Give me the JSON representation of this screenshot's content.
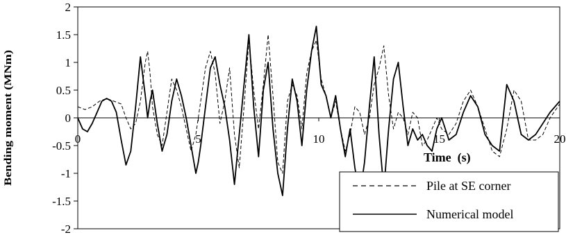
{
  "chart_data": {
    "type": "line",
    "title": "",
    "xlabel": "Time  (s)",
    "ylabel": "Bending moment (MNm)",
    "xlim": [
      0,
      20
    ],
    "ylim": [
      -2,
      2
    ],
    "x_ticks": [
      "0",
      "5",
      "10",
      "15",
      "20"
    ],
    "y_ticks": [
      "-2",
      "-1.5",
      "-1",
      "-0.5",
      "0",
      "0.5",
      "1",
      "1.5",
      "2"
    ],
    "grid": false,
    "legend_position": "bottom-right",
    "series": [
      {
        "name": "Pile at SE corner",
        "style": "dashed",
        "color": "#000000",
        "x": [
          0,
          0.3,
          0.6,
          0.9,
          1.2,
          1.5,
          1.8,
          2.0,
          2.2,
          2.4,
          2.6,
          2.8,
          2.9,
          3.0,
          3.1,
          3.3,
          3.5,
          3.7,
          3.9,
          4.1,
          4.3,
          4.5,
          4.7,
          4.9,
          5.1,
          5.3,
          5.5,
          5.7,
          5.9,
          6.1,
          6.3,
          6.5,
          6.7,
          6.9,
          7.1,
          7.3,
          7.5,
          7.7,
          7.9,
          8.1,
          8.3,
          8.5,
          8.7,
          8.9,
          9.1,
          9.3,
          9.5,
          9.7,
          9.9,
          10.1,
          10.3,
          10.5,
          10.7,
          10.9,
          11.1,
          11.3,
          11.5,
          11.7,
          11.9,
          12.1,
          12.3,
          12.5,
          12.7,
          12.9,
          13.1,
          13.3,
          13.5,
          13.7,
          13.9,
          14.1,
          14.3,
          14.5,
          14.7,
          14.9,
          15.1,
          15.4,
          15.7,
          16.0,
          16.3,
          16.6,
          16.9,
          17.2,
          17.5,
          17.8,
          18.1,
          18.4,
          18.7,
          19.0,
          19.3,
          19.6,
          20.0
        ],
        "y": [
          0.2,
          0.15,
          0.2,
          0.3,
          0.35,
          0.3,
          0.25,
          0.0,
          -0.2,
          -0.1,
          0.3,
          1.0,
          1.2,
          0.8,
          0.2,
          -0.3,
          -0.5,
          0.1,
          0.7,
          0.5,
          0.2,
          -0.2,
          -0.6,
          -0.3,
          0.3,
          0.9,
          1.2,
          0.8,
          -0.1,
          0.3,
          0.9,
          -0.3,
          -0.9,
          0.2,
          1.4,
          0.5,
          -0.2,
          0.6,
          1.5,
          0.4,
          -0.8,
          -1.0,
          0.3,
          0.6,
          0.4,
          -0.2,
          0.8,
          1.2,
          1.4,
          0.7,
          0.4,
          0.0,
          0.3,
          -0.2,
          -0.6,
          -0.3,
          0.2,
          0.1,
          -0.3,
          0.0,
          0.6,
          0.9,
          1.3,
          0.4,
          -0.2,
          0.1,
          0.0,
          -0.3,
          0.1,
          0.0,
          -0.5,
          -0.4,
          -0.2,
          0.0,
          -0.2,
          -0.3,
          -0.1,
          0.3,
          0.5,
          0.2,
          -0.2,
          -0.6,
          -0.7,
          -0.2,
          0.5,
          0.3,
          -0.4,
          -0.4,
          -0.3,
          0.0,
          0.25
        ]
      },
      {
        "name": "Numerical model",
        "style": "solid",
        "color": "#000000",
        "x": [
          0,
          0.2,
          0.4,
          0.6,
          0.8,
          1.0,
          1.2,
          1.4,
          1.6,
          1.8,
          2.0,
          2.2,
          2.4,
          2.6,
          2.8,
          2.9,
          3.0,
          3.1,
          3.3,
          3.5,
          3.7,
          3.9,
          4.1,
          4.3,
          4.5,
          4.7,
          4.9,
          5.0,
          5.1,
          5.3,
          5.5,
          5.7,
          5.9,
          6.1,
          6.3,
          6.5,
          6.7,
          6.9,
          7.1,
          7.3,
          7.5,
          7.7,
          7.9,
          8.1,
          8.3,
          8.5,
          8.7,
          8.9,
          9.1,
          9.3,
          9.5,
          9.7,
          9.9,
          10.1,
          10.3,
          10.5,
          10.7,
          10.9,
          11.1,
          11.3,
          11.5,
          11.7,
          11.9,
          12.1,
          12.3,
          12.5,
          12.7,
          12.9,
          13.1,
          13.3,
          13.5,
          13.7,
          13.9,
          14.1,
          14.3,
          14.5,
          14.7,
          14.9,
          15.1,
          15.4,
          15.7,
          16.0,
          16.3,
          16.6,
          16.9,
          17.2,
          17.5,
          17.8,
          18.1,
          18.4,
          18.7,
          19.0,
          19.3,
          19.6,
          20.0
        ],
        "y": [
          0.0,
          -0.2,
          -0.25,
          -0.1,
          0.1,
          0.3,
          0.35,
          0.3,
          0.1,
          -0.4,
          -0.85,
          -0.6,
          0.2,
          1.1,
          0.4,
          0.0,
          0.3,
          0.5,
          -0.1,
          -0.6,
          -0.3,
          0.3,
          0.7,
          0.4,
          0.0,
          -0.5,
          -1.0,
          -0.8,
          -0.5,
          0.2,
          0.9,
          1.1,
          0.6,
          0.2,
          -0.4,
          -1.2,
          -0.3,
          0.6,
          1.5,
          0.2,
          -0.7,
          0.5,
          1.0,
          -0.2,
          -1.0,
          -1.4,
          -0.2,
          0.7,
          0.3,
          -0.5,
          0.5,
          1.2,
          1.65,
          0.6,
          0.4,
          0.0,
          0.4,
          -0.2,
          -0.7,
          -0.2,
          -0.9,
          -1.4,
          -0.8,
          0.2,
          1.1,
          -0.3,
          -1.3,
          -0.2,
          0.7,
          1.0,
          0.2,
          -0.5,
          -0.2,
          -0.4,
          -0.3,
          -0.5,
          -0.6,
          -0.2,
          0.0,
          -0.4,
          -0.3,
          0.1,
          0.4,
          0.2,
          -0.3,
          -0.5,
          -0.6,
          0.6,
          0.3,
          -0.3,
          -0.4,
          -0.3,
          -0.1,
          0.1,
          0.3
        ]
      }
    ]
  }
}
